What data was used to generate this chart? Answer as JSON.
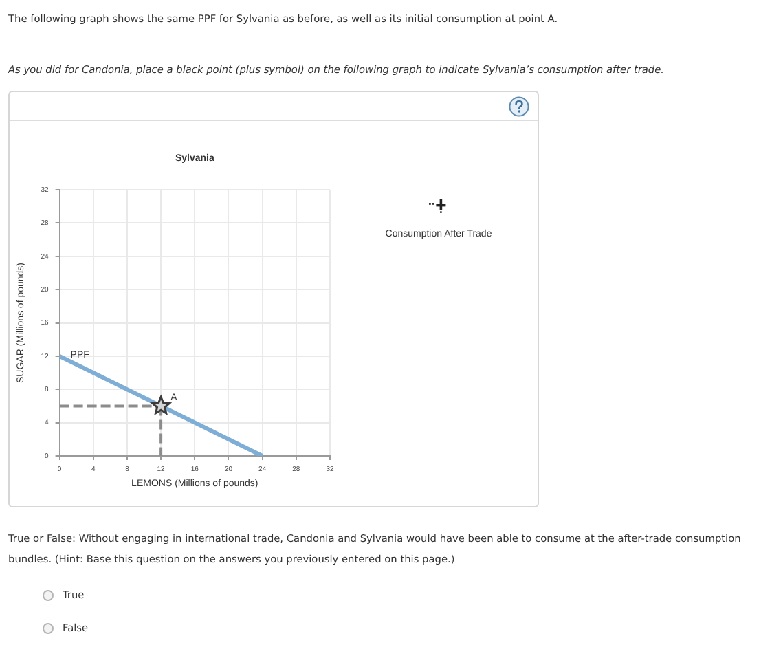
{
  "chart_data": {
    "type": "line",
    "title": "Sylvania",
    "xlabel": "LEMONS (Millions of pounds)",
    "ylabel": "SUGAR (Millions of pounds)",
    "series": [
      {
        "color": "#8c8c8c",
        "line_style": "dashed",
        "x": [
          0,
          12
        ],
        "values": [
          6,
          6
        ]
      },
      {
        "color": "#8c8c8c",
        "line_style": "dashed",
        "x": [
          12,
          12
        ],
        "values": [
          6,
          0
        ]
      },
      {
        "name": "PPF",
        "color": "#7eadd6",
        "x": [
          0,
          24
        ],
        "values": [
          12,
          0
        ]
      },
      {
        "type": "scatter",
        "color": "#3c3c3c",
        "marker": "star",
        "x": [
          12
        ],
        "values": [
          6
        ]
      }
    ],
    "xlim": [
      0,
      32
    ],
    "xticks": [
      0,
      4,
      8,
      12,
      16,
      20,
      24,
      28,
      32
    ],
    "ylim": [
      0,
      32
    ],
    "yticks": [
      0,
      4,
      8,
      12,
      16,
      20,
      24,
      28,
      32
    ],
    "grid": true,
    "legend": false,
    "marker": "none",
    "line_style": "solid",
    "annotations": [
      "The following graph shows the same PPF for Sylvania as before, as well as its initial consumption at point A.",
      "As you did for Candonia, place a black point (plus symbol) on the following graph to indicate Sylvania’s consumption after trade.",
      {
        "text": "A",
        "x": 12,
        "y": 6
      },
      "Consumption After Trade",
      "True or False: Without engaging in international trade, Candonia and Sylvania would have been able to consume at the after-trade consumption bundles. (Hint: Base this question on the answers you previously entered on this page.)",
      "True",
      "False"
    ]
  }
}
